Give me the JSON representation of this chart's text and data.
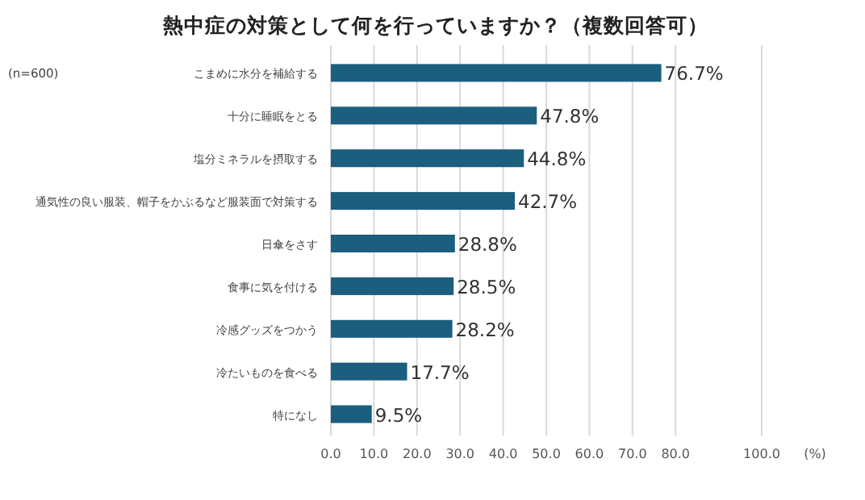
{
  "chart_data": {
    "type": "bar",
    "orientation": "horizontal",
    "title": "熱中症の対策として何を行っていますか？（複数回答可）",
    "xlabel": "(%)",
    "annotations": [
      "(n=600)"
    ],
    "categories": [
      "こまめに水分を補給する",
      "十分に睡眠をとる",
      "塩分ミネラルを摂取する",
      "通気性の良い服装、帽子をかぶるなど服装面で対策する",
      "日傘をさす",
      "食事に気を付ける",
      "冷感グッズをつかう",
      "冷たいものを食べる",
      "特になし"
    ],
    "values": [
      76.7,
      47.8,
      44.8,
      42.7,
      28.8,
      28.5,
      28.2,
      17.7,
      9.5
    ],
    "value_labels": [
      "76.7%",
      "47.8%",
      "44.8%",
      "42.7%",
      "28.8%",
      "28.5%",
      "28.2%",
      "17.7%",
      "9.5%"
    ],
    "color": "#1b5e7e",
    "xlim": [
      0,
      100
    ],
    "xticks": [
      {
        "value": 0,
        "label": "0.0"
      },
      {
        "value": 10,
        "label": "10.0"
      },
      {
        "value": 20,
        "label": "20.0"
      },
      {
        "value": 30,
        "label": "30.0"
      },
      {
        "value": 40,
        "label": "40.0"
      },
      {
        "value": 50,
        "label": "50.0"
      },
      {
        "value": 60,
        "label": "60.0"
      },
      {
        "value": 70,
        "label": "70.0"
      },
      {
        "value": 80,
        "label": "80.0"
      },
      {
        "value": 100,
        "label": "100.0"
      }
    ],
    "grid": "x"
  }
}
